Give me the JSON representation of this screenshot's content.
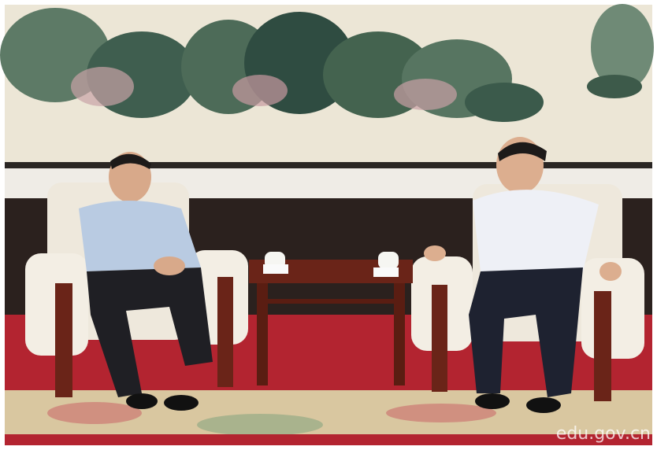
{
  "watermark": {
    "text": "edu.gov.cn"
  }
}
